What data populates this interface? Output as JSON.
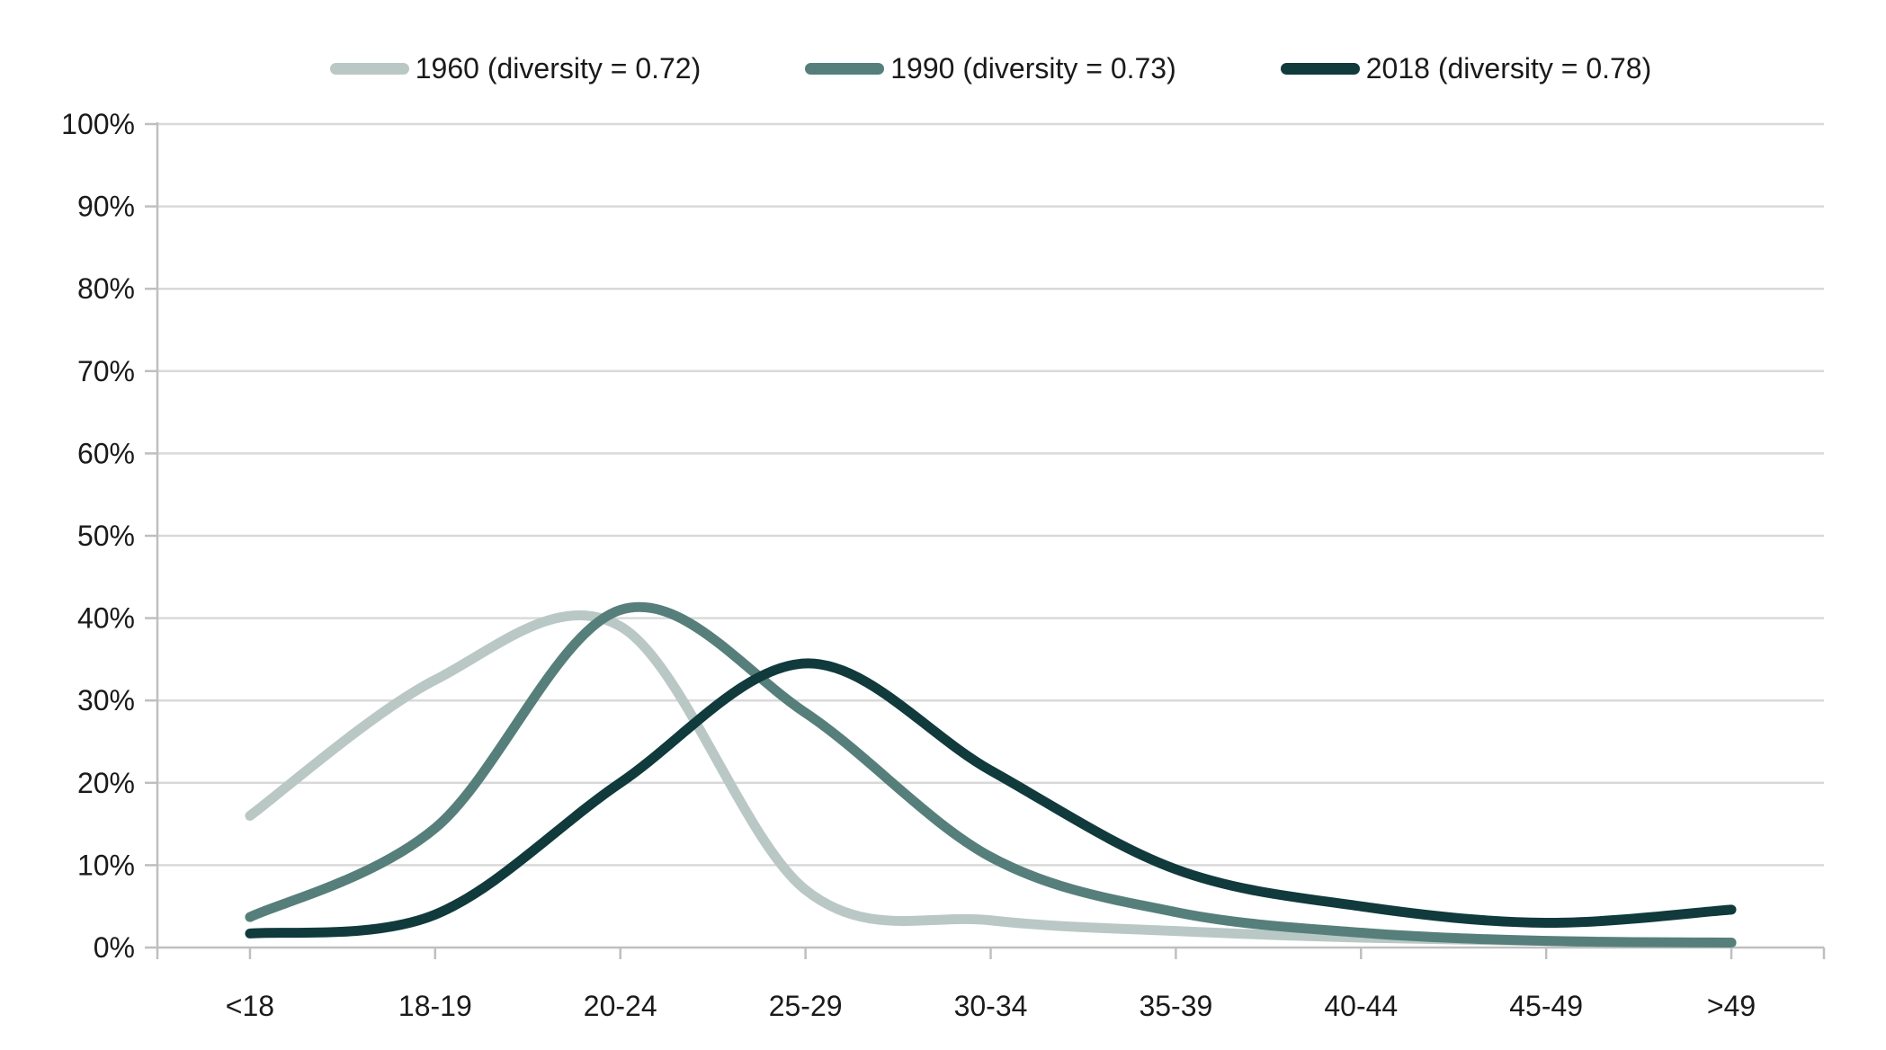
{
  "chart_data": {
    "type": "line",
    "smooth": true,
    "title": "",
    "xlabel": "",
    "ylabel": "",
    "legend_position": "top",
    "grid": "horizontal",
    "categories": [
      "<18",
      "18-19",
      "20-24",
      "25-29",
      "30-34",
      "35-39",
      "40-44",
      "45-49",
      ">49"
    ],
    "series": [
      {
        "name": "1960 (diversity = 0.72)",
        "color": "#b9c8c5",
        "values": [
          16,
          32.5,
          39,
          7,
          3.3,
          2,
          1.2,
          0.8,
          0.5
        ]
      },
      {
        "name": "1990 (diversity = 0.73)",
        "color": "#567f7b",
        "values": [
          3.7,
          14.5,
          41,
          28.5,
          11,
          4.3,
          1.8,
          0.8,
          0.6
        ]
      },
      {
        "name": "2018 (diversity = 0.78)",
        "color": "#103a3c",
        "values": [
          1.7,
          4,
          20,
          34.5,
          21.5,
          9.5,
          5,
          3,
          4.6
        ]
      }
    ],
    "y_axis": {
      "min": 0,
      "max": 100,
      "step": 10,
      "tick_labels": [
        "0%",
        "10%",
        "20%",
        "30%",
        "40%",
        "50%",
        "60%",
        "70%",
        "80%",
        "90%",
        "100%"
      ]
    },
    "x_axis": {
      "tick_labels": [
        "<18",
        "18-19",
        "20-24",
        "25-29",
        "30-34",
        "35-39",
        "40-44",
        "45-49",
        ">49"
      ]
    }
  },
  "colors": {
    "background": "#ffffff",
    "gridline": "#d9d9d9",
    "axis_line": "#bfbfbf",
    "text": "#1a1a1a",
    "series_1960": "#b9c8c5",
    "series_1990": "#567f7b",
    "series_2018": "#103a3c"
  }
}
